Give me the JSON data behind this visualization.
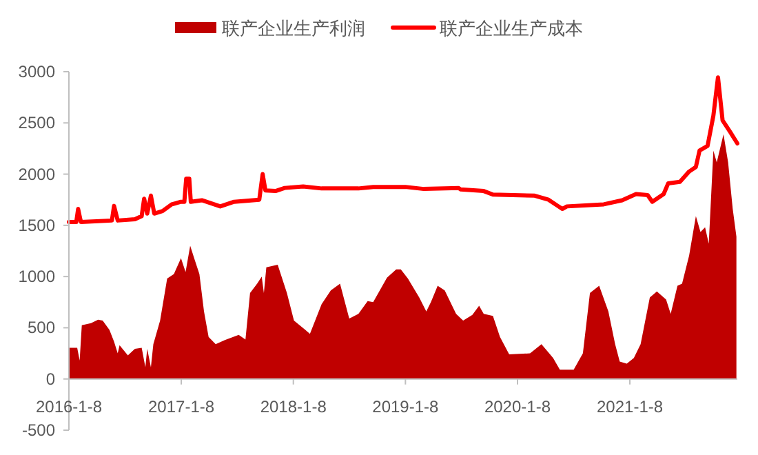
{
  "chart_data": {
    "type": "area",
    "legend": "top",
    "xlim": [
      "2016-01-08",
      "2021-12-24"
    ],
    "xticks": [
      {
        "value": "2016-01-08",
        "label": "2016-1-8"
      },
      {
        "value": "2017-01-08",
        "label": "2017-1-8"
      },
      {
        "value": "2018-01-08",
        "label": "2018-1-8"
      },
      {
        "value": "2019-01-08",
        "label": "2019-1-8"
      },
      {
        "value": "2020-01-08",
        "label": "2020-1-8"
      },
      {
        "value": "2021-01-08",
        "label": "2021-1-8"
      }
    ],
    "ylim": [
      -500,
      3000
    ],
    "yticks": [
      -500,
      0,
      500,
      1000,
      1500,
      2000,
      2500,
      3000
    ],
    "series": [
      {
        "name": "联产企业生产利润",
        "color": "#c00000",
        "x": [
          "2016-01-08",
          "2016-02-04",
          "2016-02-12",
          "2016-02-19",
          "2016-03-20",
          "2016-04-12",
          "2016-04-27",
          "2016-05-19",
          "2016-06-03",
          "2016-06-15",
          "2016-06-21",
          "2016-07-18",
          "2016-08-10",
          "2016-09-01",
          "2016-09-13",
          "2016-09-19",
          "2016-10-01",
          "2016-10-09",
          "2016-10-31",
          "2016-11-23",
          "2016-12-15",
          "2017-01-07",
          "2017-01-22",
          "2017-02-06",
          "2017-02-21",
          "2017-03-08",
          "2017-03-23",
          "2017-04-07",
          "2017-04-30",
          "2017-05-30",
          "2017-07-14",
          "2017-08-05",
          "2017-08-20",
          "2017-09-12",
          "2017-09-27",
          "2017-10-04",
          "2017-10-12",
          "2017-11-18",
          "2017-12-18",
          "2018-01-10",
          "2018-02-16",
          "2018-03-03",
          "2018-04-10",
          "2018-05-10",
          "2018-06-09",
          "2018-07-09",
          "2018-08-08",
          "2018-09-07",
          "2018-09-25",
          "2018-11-09",
          "2018-12-09",
          "2018-12-24",
          "2019-01-16",
          "2019-02-22",
          "2019-03-17",
          "2019-04-01",
          "2019-04-23",
          "2019-05-16",
          "2019-06-22",
          "2019-07-15",
          "2019-08-14",
          "2019-09-05",
          "2019-09-20",
          "2019-10-20",
          "2019-11-12",
          "2019-12-12",
          "2020-02-18",
          "2020-03-26",
          "2020-05-03",
          "2020-05-25",
          "2020-07-09",
          "2020-08-08",
          "2020-08-31",
          "2020-09-30",
          "2020-10-30",
          "2020-11-21",
          "2020-12-06",
          "2020-12-29",
          "2021-01-21",
          "2021-02-12",
          "2021-03-14",
          "2021-04-06",
          "2021-05-06",
          "2021-05-21",
          "2021-06-12",
          "2021-06-27",
          "2021-07-20",
          "2021-08-11",
          "2021-08-26",
          "2021-09-10",
          "2021-09-22",
          "2021-10-07",
          "2021-10-18",
          "2021-11-09",
          "2021-11-24",
          "2021-12-09",
          "2021-12-21"
        ],
        "values": [
          305,
          305,
          180,
          525,
          545,
          578,
          570,
          480,
          365,
          250,
          330,
          230,
          295,
          305,
          115,
          295,
          115,
          340,
          570,
          980,
          1025,
          1180,
          1045,
          1300,
          1160,
          1025,
          660,
          410,
          340,
          380,
          430,
          385,
          840,
          930,
          1000,
          840,
          1090,
          1115,
          840,
          570,
          480,
          440,
          730,
          865,
          930,
          590,
          635,
          760,
          750,
          990,
          1070,
          1070,
          980,
          795,
          660,
          750,
          910,
          865,
          635,
          570,
          625,
          715,
          635,
          615,
          410,
          240,
          250,
          340,
          205,
          90,
          90,
          250,
          840,
          910,
          660,
          340,
          170,
          150,
          205,
          340,
          795,
          855,
          775,
          635,
          910,
          930,
          1205,
          1590,
          1435,
          1480,
          1320,
          2230,
          2115,
          2390,
          2115,
          1660,
          1390
        ]
      },
      {
        "name": "联产企业生产成本",
        "type": "line",
        "color": "#ff0000",
        "x": [
          "2016-01-08",
          "2016-02-01",
          "2016-02-07",
          "2016-02-16",
          "2016-05-27",
          "2016-06-03",
          "2016-06-15",
          "2016-08-10",
          "2016-09-01",
          "2016-09-09",
          "2016-09-19",
          "2016-10-01",
          "2016-10-12",
          "2016-11-08",
          "2016-12-08",
          "2017-01-07",
          "2017-01-18",
          "2017-01-24",
          "2017-02-03",
          "2017-02-08",
          "2017-03-16",
          "2017-05-15",
          "2017-06-29",
          "2017-09-19",
          "2017-09-30",
          "2017-10-09",
          "2017-11-11",
          "2017-12-11",
          "2018-02-09",
          "2018-04-10",
          "2018-08-08",
          "2018-09-25",
          "2019-01-08",
          "2019-03-09",
          "2019-06-30",
          "2019-07-07",
          "2019-09-20",
          "2019-10-20",
          "2020-03-04",
          "2020-04-18",
          "2020-05-18",
          "2020-06-02",
          "2020-06-17",
          "2020-10-15",
          "2020-12-14",
          "2021-01-28",
          "2021-03-07",
          "2021-03-22",
          "2021-04-28",
          "2021-05-13",
          "2021-06-20",
          "2021-07-20",
          "2021-08-11",
          "2021-08-23",
          "2021-09-18",
          "2021-10-07",
          "2021-10-22",
          "2021-11-06",
          "2021-12-01",
          "2021-12-24"
        ],
        "values": [
          1533,
          1533,
          1660,
          1533,
          1547,
          1690,
          1547,
          1560,
          1590,
          1760,
          1615,
          1790,
          1615,
          1640,
          1705,
          1730,
          1730,
          1955,
          1955,
          1730,
          1745,
          1685,
          1730,
          1750,
          2000,
          1840,
          1835,
          1865,
          1880,
          1860,
          1860,
          1875,
          1875,
          1855,
          1865,
          1850,
          1835,
          1800,
          1790,
          1750,
          1690,
          1660,
          1685,
          1705,
          1745,
          1805,
          1795,
          1730,
          1805,
          1910,
          1925,
          2025,
          2070,
          2230,
          2275,
          2570,
          2945,
          2525,
          2410,
          2300
        ]
      }
    ]
  }
}
